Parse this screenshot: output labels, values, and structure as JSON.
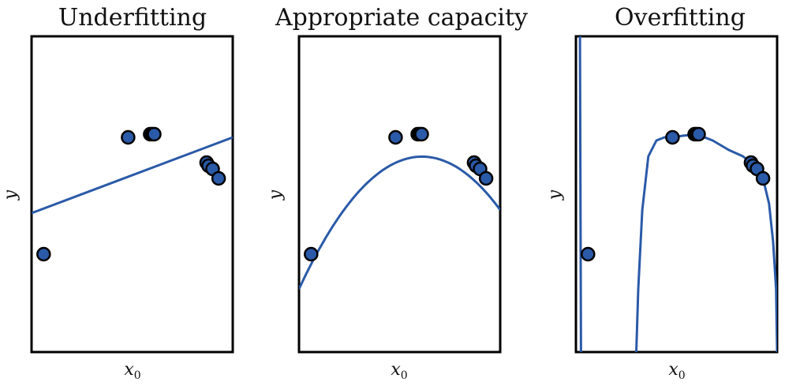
{
  "colors": {
    "series": "#2a5aa8",
    "point_edge": "#000000",
    "frame": "#000000"
  },
  "chart_data": [
    {
      "type": "scatter",
      "title": "Underfitting",
      "xlabel": "x",
      "xlabel_subscript": "0",
      "ylabel": "y",
      "grid": false,
      "ticks": false,
      "xlim": [
        0,
        1
      ],
      "ylim": [
        0,
        1
      ],
      "points": [
        {
          "x": 0.06,
          "y": 0.31
        },
        {
          "x": 0.48,
          "y": 0.68
        },
        {
          "x": 0.59,
          "y": 0.69
        },
        {
          "x": 0.6,
          "y": 0.69
        },
        {
          "x": 0.61,
          "y": 0.69
        },
        {
          "x": 0.87,
          "y": 0.6
        },
        {
          "x": 0.88,
          "y": 0.59
        },
        {
          "x": 0.9,
          "y": 0.58
        },
        {
          "x": 0.93,
          "y": 0.55
        }
      ],
      "fit": {
        "kind": "linear",
        "params": [
          0.44,
          0.24
        ]
      }
    },
    {
      "type": "scatter",
      "title": "Appropriate capacity",
      "xlabel": "x",
      "xlabel_subscript": "0",
      "ylabel": "y",
      "grid": false,
      "ticks": false,
      "xlim": [
        0,
        1
      ],
      "ylim": [
        0,
        1
      ],
      "points": [
        {
          "x": 0.06,
          "y": 0.31
        },
        {
          "x": 0.48,
          "y": 0.68
        },
        {
          "x": 0.59,
          "y": 0.69
        },
        {
          "x": 0.6,
          "y": 0.69
        },
        {
          "x": 0.61,
          "y": 0.69
        },
        {
          "x": 0.87,
          "y": 0.6
        },
        {
          "x": 0.88,
          "y": 0.59
        },
        {
          "x": 0.9,
          "y": 0.58
        },
        {
          "x": 0.93,
          "y": 0.55
        }
      ],
      "fit": {
        "kind": "quadratic",
        "params": [
          0.2,
          1.37,
          -1.12
        ]
      }
    },
    {
      "type": "scatter",
      "title": "Overfitting",
      "xlabel": "x",
      "xlabel_subscript": "0",
      "ylabel": "y",
      "grid": false,
      "ticks": false,
      "xlim": [
        0,
        1
      ],
      "ylim": [
        0,
        1
      ],
      "points": [
        {
          "x": 0.06,
          "y": 0.31
        },
        {
          "x": 0.48,
          "y": 0.68
        },
        {
          "x": 0.59,
          "y": 0.69
        },
        {
          "x": 0.6,
          "y": 0.69
        },
        {
          "x": 0.61,
          "y": 0.69
        },
        {
          "x": 0.87,
          "y": 0.6
        },
        {
          "x": 0.88,
          "y": 0.59
        },
        {
          "x": 0.9,
          "y": 0.58
        },
        {
          "x": 0.93,
          "y": 0.55
        }
      ],
      "fit": {
        "kind": "polyline",
        "note": "high-degree polynomial interpolating all points",
        "curves": [
          [
            [
              0.02,
              1.0
            ],
            [
              0.025,
              0.0
            ]
          ],
          [
            [
              0.3,
              0.0
            ],
            [
              0.31,
              0.2
            ],
            [
              0.33,
              0.45
            ],
            [
              0.36,
              0.62
            ],
            [
              0.4,
              0.67
            ],
            [
              0.44,
              0.68
            ],
            [
              0.48,
              0.68
            ],
            [
              0.53,
              0.685
            ],
            [
              0.6,
              0.69
            ],
            [
              0.68,
              0.67
            ],
            [
              0.76,
              0.64
            ],
            [
              0.83,
              0.62
            ],
            [
              0.87,
              0.6
            ],
            [
              0.9,
              0.58
            ],
            [
              0.93,
              0.55
            ],
            [
              0.96,
              0.47
            ],
            [
              0.98,
              0.35
            ],
            [
              0.995,
              0.2
            ],
            [
              1.0,
              0.0
            ]
          ]
        ]
      }
    }
  ]
}
